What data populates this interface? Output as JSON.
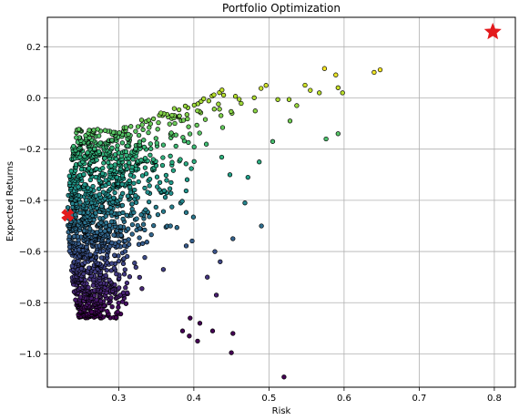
{
  "chart_data": {
    "type": "scatter",
    "title": "Portfolio Optimization",
    "xlabel": "Risk",
    "ylabel": "Expected Returns",
    "xlim": [
      0.205,
      0.828
    ],
    "ylim": [
      -1.13,
      0.315
    ],
    "xticks": [
      0.3,
      0.4,
      0.5,
      0.6,
      0.7,
      0.8
    ],
    "yticks": [
      -1.0,
      -0.8,
      -0.6,
      -0.4,
      -0.2,
      0.0,
      0.2
    ],
    "xtick_labels": [
      "0.3",
      "0.4",
      "0.5",
      "0.6",
      "0.7",
      "0.8"
    ],
    "ytick_labels": [
      "−1.0",
      "−0.8",
      "−0.6",
      "−0.4",
      "−0.2",
      "0.0",
      "0.2"
    ],
    "grid": true,
    "colormap": "viridis",
    "color_by": "sharpe ratio",
    "color_range_returns": [
      -0.85,
      0.12
    ],
    "point_edge_color": "#000000",
    "num_points_estimated": 1400,
    "frontier_min_risk": 0.232,
    "frontier_vertex_return": -0.46,
    "sparse_outliers": [
      {
        "x": 0.64,
        "y": 0.1
      },
      {
        "x": 0.648,
        "y": 0.11
      },
      {
        "x": 0.574,
        "y": 0.115
      },
      {
        "x": 0.589,
        "y": 0.09
      },
      {
        "x": 0.592,
        "y": 0.04
      },
      {
        "x": 0.598,
        "y": 0.02
      },
      {
        "x": 0.592,
        "y": -0.14
      },
      {
        "x": 0.576,
        "y": -0.16
      },
      {
        "x": 0.548,
        "y": 0.05
      },
      {
        "x": 0.555,
        "y": 0.03
      },
      {
        "x": 0.567,
        "y": 0.02
      },
      {
        "x": 0.537,
        "y": -0.03
      },
      {
        "x": 0.528,
        "y": -0.09
      },
      {
        "x": 0.505,
        "y": -0.17
      },
      {
        "x": 0.487,
        "y": -0.25
      },
      {
        "x": 0.472,
        "y": -0.31
      },
      {
        "x": 0.448,
        "y": -0.3
      },
      {
        "x": 0.468,
        "y": -0.41
      },
      {
        "x": 0.49,
        "y": -0.5
      },
      {
        "x": 0.452,
        "y": -0.55
      },
      {
        "x": 0.428,
        "y": -0.6
      },
      {
        "x": 0.435,
        "y": -0.64
      },
      {
        "x": 0.418,
        "y": -0.7
      },
      {
        "x": 0.43,
        "y": -0.77
      },
      {
        "x": 0.395,
        "y": -0.86
      },
      {
        "x": 0.408,
        "y": -0.88
      },
      {
        "x": 0.385,
        "y": -0.91
      },
      {
        "x": 0.425,
        "y": -0.91
      },
      {
        "x": 0.452,
        "y": -0.92
      },
      {
        "x": 0.45,
        "y": -0.995
      },
      {
        "x": 0.405,
        "y": -0.95
      },
      {
        "x": 0.394,
        "y": -0.93
      },
      {
        "x": 0.52,
        "y": -1.09
      }
    ],
    "markers": [
      {
        "shape": "star",
        "x": 0.798,
        "y": 0.258,
        "color": "#e31a1c"
      },
      {
        "shape": "x",
        "x": 0.232,
        "y": -0.458,
        "color": "#e31a1c"
      }
    ]
  }
}
